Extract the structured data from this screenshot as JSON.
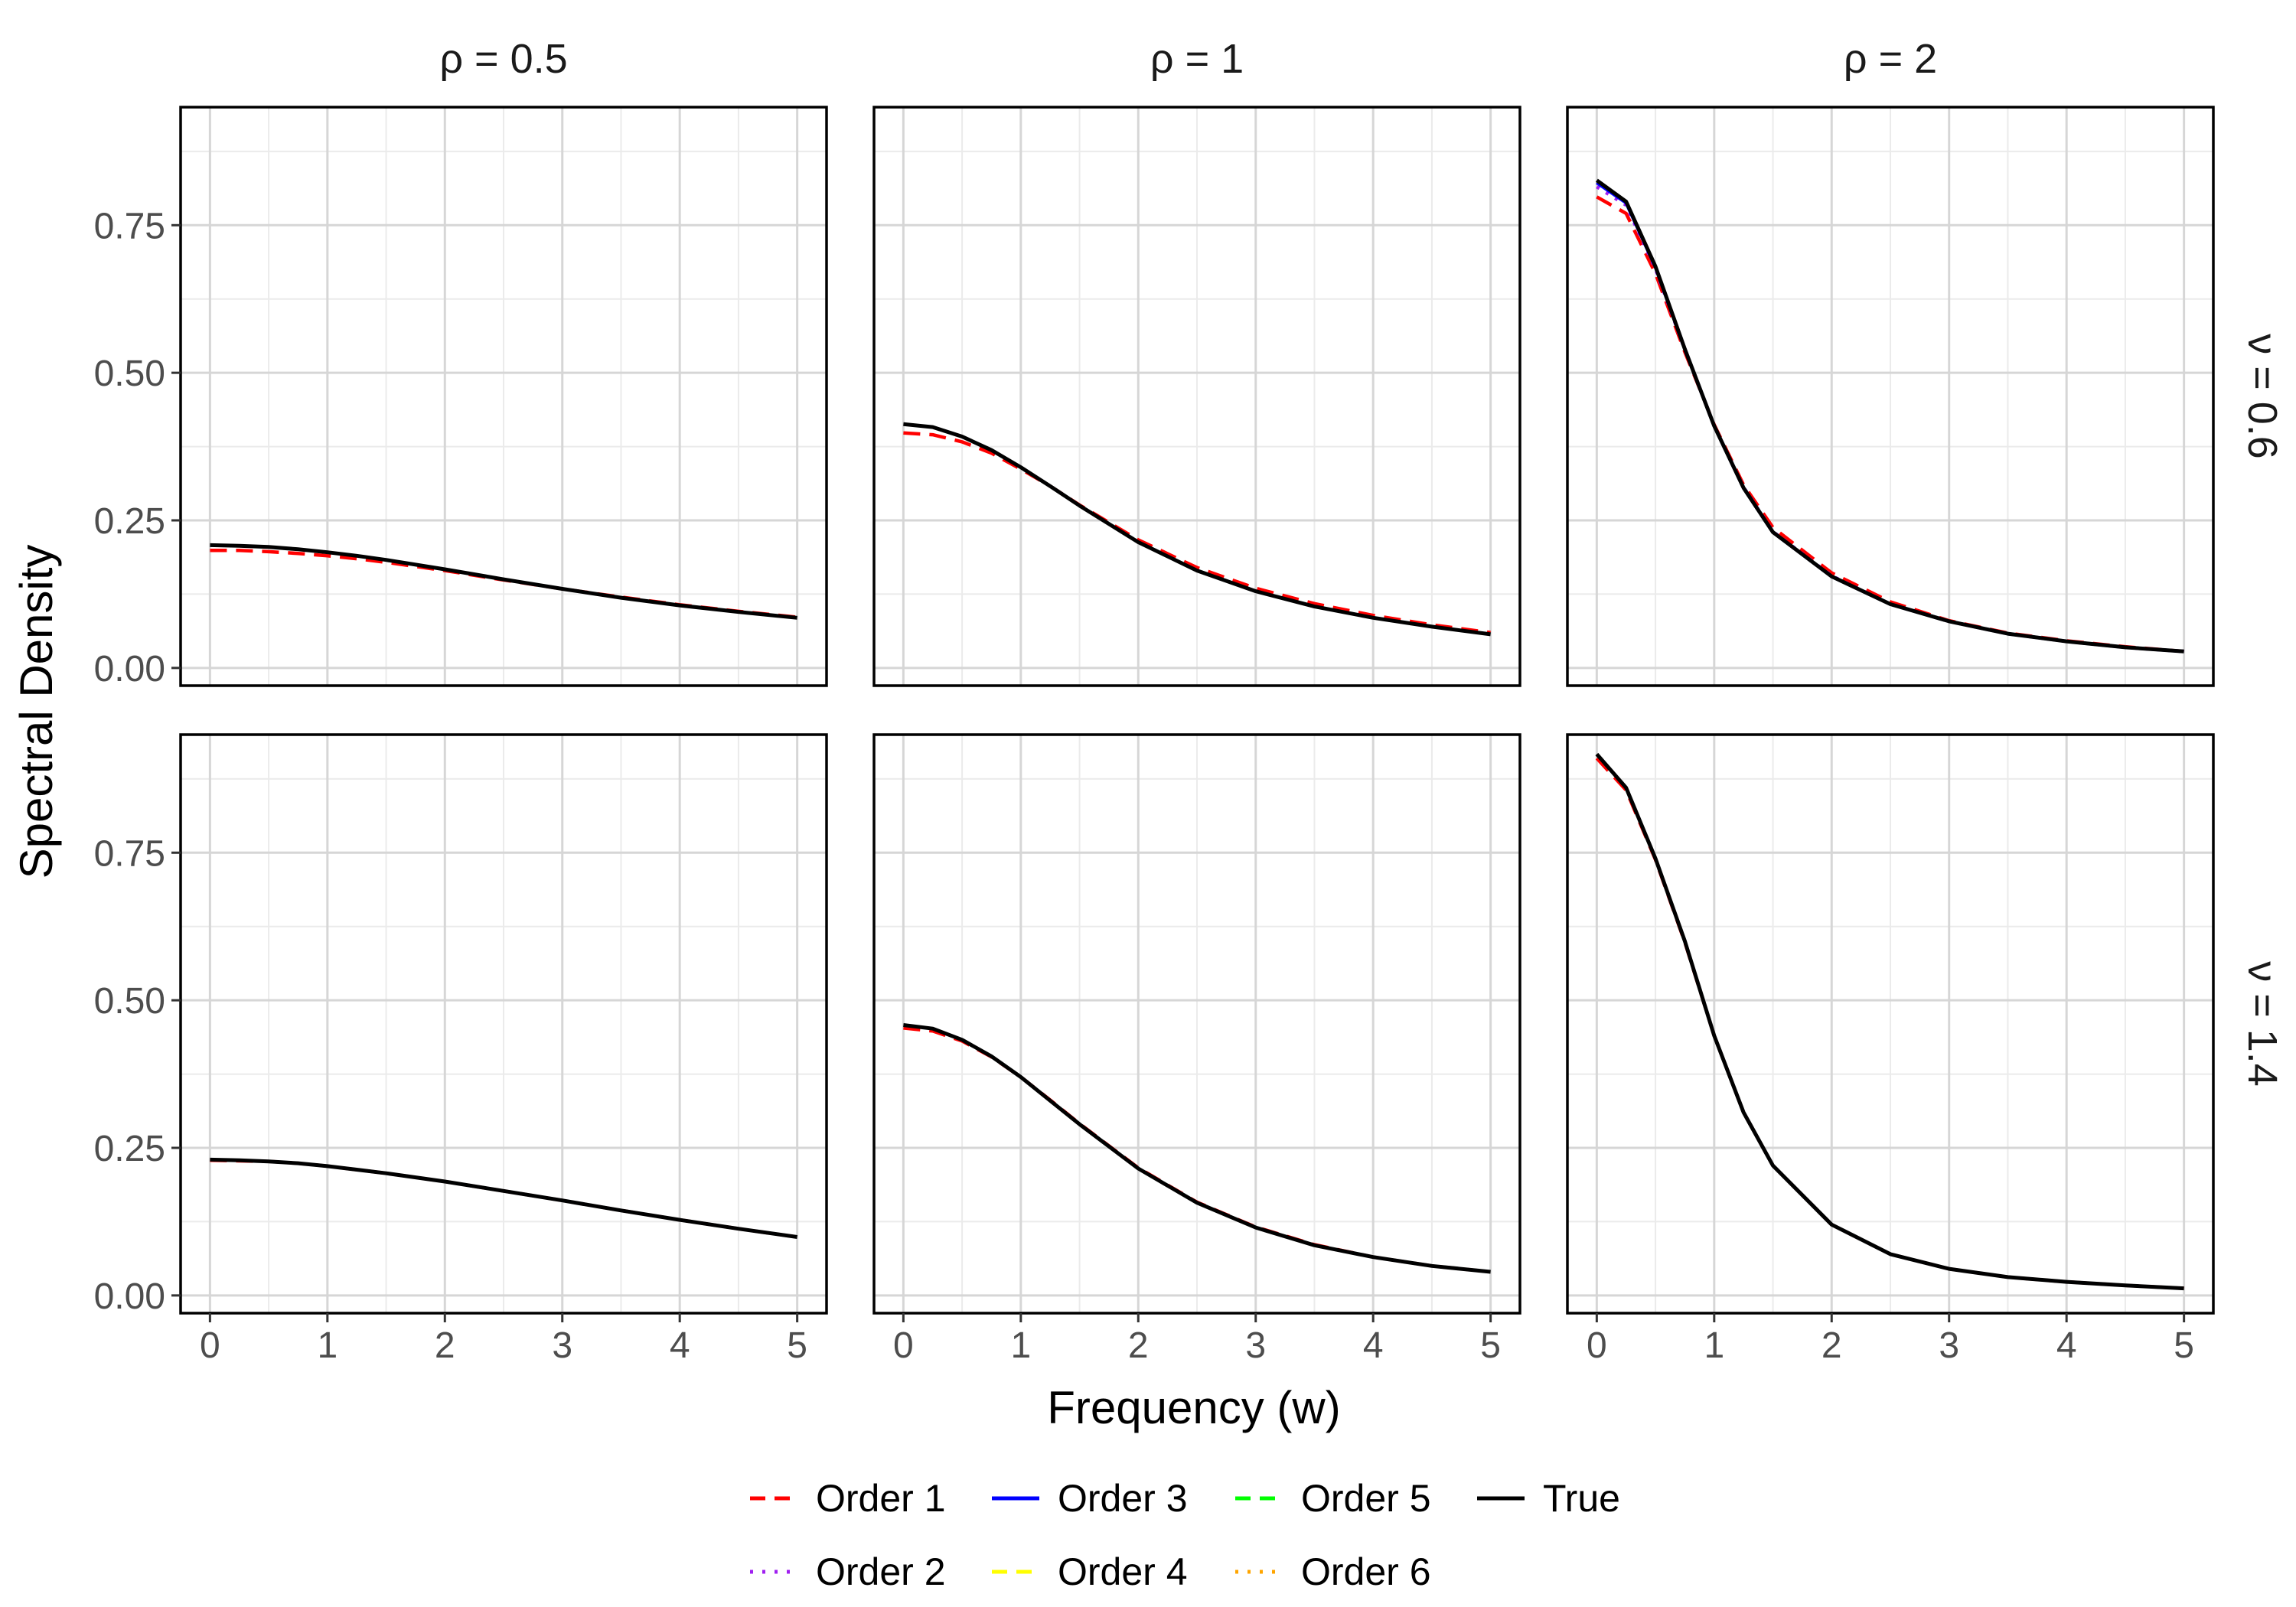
{
  "chart_data": {
    "type": "line",
    "ylabel": "Spectral Density",
    "xlabel": "Frequency (w)",
    "column_labels": [
      "ρ = 0.5",
      "ρ = 1",
      "ρ = 2"
    ],
    "row_labels": [
      "ν = 0.6",
      "ν = 1.4"
    ],
    "xlim": [
      -0.25,
      5.25
    ],
    "ylim": [
      -0.03,
      0.95
    ],
    "x_ticks": [
      0,
      1,
      2,
      3,
      4,
      5
    ],
    "x_tick_labels": [
      "0",
      "1",
      "2",
      "3",
      "4",
      "5"
    ],
    "y_ticks": [
      0,
      0.25,
      0.5,
      0.75
    ],
    "y_tick_labels": [
      "0.00",
      "0.25",
      "0.50",
      "0.75"
    ],
    "grid": true,
    "legend_position": "bottom",
    "legend": [
      {
        "label": "Order 1",
        "color": "#ff0000",
        "dash": "dashed"
      },
      {
        "label": "Order 3",
        "color": "#0000ff",
        "dash": "solid"
      },
      {
        "label": "Order 5",
        "color": "#00ff00",
        "dash": "dashed"
      },
      {
        "label": "True",
        "color": "#000000",
        "dash": "solid"
      },
      {
        "label": "Order 2",
        "color": "#a020f0",
        "dash": "dotted"
      },
      {
        "label": "Order 4",
        "color": "#ffff00",
        "dash": "dashed"
      },
      {
        "label": "Order 6",
        "color": "#ffa500",
        "dash": "dotted"
      }
    ],
    "x": [
      0,
      0.25,
      0.5,
      0.75,
      1,
      1.25,
      1.5,
      2,
      2.5,
      3,
      3.5,
      4,
      4.5,
      5
    ],
    "panels": [
      {
        "row": 0,
        "col": 0,
        "series": [
          {
            "name": "True",
            "values": [
              0.208,
              0.207,
              0.205,
              0.201,
              0.196,
              0.19,
              0.183,
              0.167,
              0.15,
              0.134,
              0.119,
              0.106,
              0.095,
              0.085
            ]
          },
          {
            "name": "Order 1",
            "values": [
              0.199,
              0.199,
              0.197,
              0.194,
              0.19,
              0.185,
              0.179,
              0.165,
              0.149,
              0.134,
              0.12,
              0.107,
              0.096,
              0.086
            ]
          }
        ]
      },
      {
        "row": 0,
        "col": 1,
        "series": [
          {
            "name": "True",
            "values": [
              0.413,
              0.408,
              0.392,
              0.369,
              0.34,
              0.308,
              0.275,
              0.213,
              0.165,
              0.13,
              0.104,
              0.085,
              0.07,
              0.057
            ]
          },
          {
            "name": "Order 1",
            "values": [
              0.398,
              0.395,
              0.383,
              0.364,
              0.337,
              0.308,
              0.276,
              0.217,
              0.17,
              0.135,
              0.109,
              0.089,
              0.073,
              0.06
            ]
          }
        ]
      },
      {
        "row": 0,
        "col": 2,
        "series": [
          {
            "name": "True",
            "values": [
              0.826,
              0.79,
              0.68,
              0.54,
              0.41,
              0.305,
              0.23,
              0.155,
              0.108,
              0.079,
              0.058,
              0.045,
              0.035,
              0.028
            ]
          },
          {
            "name": "Order 1",
            "values": [
              0.798,
              0.77,
              0.668,
              0.535,
              0.412,
              0.31,
              0.238,
              0.161,
              0.112,
              0.08,
              0.059,
              0.046,
              0.036,
              0.028
            ]
          },
          {
            "name": "Order 2",
            "values": [
              0.815,
              0.784,
              0.676,
              0.539,
              0.41,
              0.306,
              0.231,
              0.156,
              0.108,
              0.079,
              0.058,
              0.045,
              0.035,
              0.028
            ]
          },
          {
            "name": "Order 3",
            "values": [
              0.822,
              0.788,
              0.679,
              0.54,
              0.41,
              0.305,
              0.23,
              0.155,
              0.108,
              0.079,
              0.058,
              0.045,
              0.035,
              0.028
            ]
          }
        ]
      },
      {
        "row": 1,
        "col": 0,
        "series": [
          {
            "name": "True",
            "values": [
              0.23,
              0.229,
              0.227,
              0.224,
              0.219,
              0.213,
              0.207,
              0.193,
              0.177,
              0.161,
              0.144,
              0.128,
              0.113,
              0.099
            ]
          },
          {
            "name": "Order 1",
            "values": [
              0.229,
              0.228,
              0.227,
              0.224,
              0.219,
              0.213,
              0.207,
              0.193,
              0.177,
              0.161,
              0.144,
              0.128,
              0.113,
              0.099
            ]
          }
        ]
      },
      {
        "row": 1,
        "col": 1,
        "series": [
          {
            "name": "True",
            "values": [
              0.458,
              0.452,
              0.433,
              0.405,
              0.37,
              0.33,
              0.29,
              0.215,
              0.157,
              0.115,
              0.085,
              0.065,
              0.05,
              0.04
            ]
          },
          {
            "name": "Order 1",
            "values": [
              0.453,
              0.448,
              0.431,
              0.404,
              0.37,
              0.331,
              0.291,
              0.216,
              0.158,
              0.116,
              0.086,
              0.065,
              0.05,
              0.04
            ]
          }
        ]
      },
      {
        "row": 1,
        "col": 2,
        "series": [
          {
            "name": "True",
            "values": [
              0.917,
              0.86,
              0.74,
              0.6,
              0.44,
              0.31,
              0.22,
              0.12,
              0.07,
              0.045,
              0.031,
              0.023,
              0.017,
              0.012
            ]
          },
          {
            "name": "Order 1",
            "values": [
              0.91,
              0.856,
              0.738,
              0.598,
              0.44,
              0.31,
              0.22,
              0.12,
              0.07,
              0.045,
              0.031,
              0.023,
              0.017,
              0.012
            ]
          }
        ]
      }
    ]
  }
}
